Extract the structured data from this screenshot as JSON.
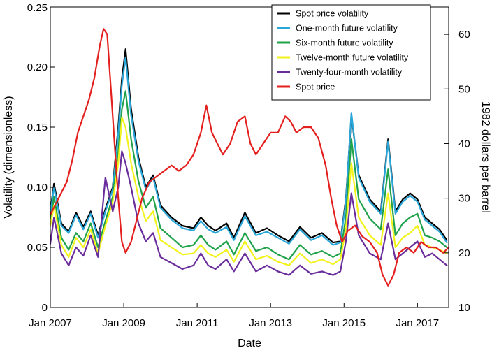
{
  "chart_data": {
    "type": "line",
    "xlabel": "Date",
    "ylabel_left": "Volatility (dimensionless)",
    "ylabel_right": "1982 dollars per barrel",
    "x_ticks": [
      {
        "label": "Jan 2007",
        "t": 2007.0
      },
      {
        "label": "Jan 2009",
        "t": 2009.0
      },
      {
        "label": "Jan 2011",
        "t": 2011.0
      },
      {
        "label": "Jan 2013",
        "t": 2013.0
      },
      {
        "label": "Jan 2015",
        "t": 2015.0
      },
      {
        "label": "Jan 2017",
        "t": 2017.0
      }
    ],
    "y_left_ticks": [
      {
        "label": "0",
        "v": 0
      },
      {
        "label": "0.05",
        "v": 0.05
      },
      {
        "label": "0.10",
        "v": 0.1
      },
      {
        "label": "0.15",
        "v": 0.15
      },
      {
        "label": "0.20",
        "v": 0.2
      },
      {
        "label": "0.25",
        "v": 0.25
      }
    ],
    "y_right_ticks": [
      {
        "label": "10",
        "v": 10
      },
      {
        "label": "20",
        "v": 20
      },
      {
        "label": "30",
        "v": 30
      },
      {
        "label": "40",
        "v": 40
      },
      {
        "label": "50",
        "v": 50
      },
      {
        "label": "60",
        "v": 60
      }
    ],
    "xlim": [
      2007.0,
      2017.85
    ],
    "ylim_left": [
      0,
      0.25
    ],
    "ylim_right": [
      10,
      65
    ],
    "legend_position": "top-right",
    "series": [
      {
        "name": "Spot price volatility",
        "color": "#000000",
        "axis": "left",
        "x": [
          2007.0,
          2007.1,
          2007.3,
          2007.5,
          2007.7,
          2007.9,
          2008.1,
          2008.3,
          2008.5,
          2008.7,
          2008.85,
          2008.95,
          2009.05,
          2009.2,
          2009.4,
          2009.6,
          2009.8,
          2010.0,
          2010.3,
          2010.6,
          2010.9,
          2011.1,
          2011.3,
          2011.5,
          2011.8,
          2012.0,
          2012.3,
          2012.6,
          2012.9,
          2013.2,
          2013.5,
          2013.8,
          2014.1,
          2014.4,
          2014.7,
          2014.9,
          2015.05,
          2015.2,
          2015.4,
          2015.7,
          2016.0,
          2016.2,
          2016.4,
          2016.6,
          2016.8,
          2017.0,
          2017.2,
          2017.4,
          2017.6,
          2017.8
        ],
        "values": [
          0.08,
          0.103,
          0.07,
          0.063,
          0.079,
          0.067,
          0.08,
          0.06,
          0.082,
          0.1,
          0.15,
          0.19,
          0.215,
          0.165,
          0.125,
          0.1,
          0.11,
          0.085,
          0.075,
          0.068,
          0.066,
          0.075,
          0.068,
          0.064,
          0.07,
          0.058,
          0.079,
          0.062,
          0.066,
          0.06,
          0.055,
          0.067,
          0.058,
          0.062,
          0.054,
          0.055,
          0.09,
          0.16,
          0.11,
          0.09,
          0.08,
          0.14,
          0.08,
          0.09,
          0.095,
          0.09,
          0.075,
          0.07,
          0.065,
          0.056
        ]
      },
      {
        "name": "One-month future volatility",
        "color": "#2aa6d8",
        "axis": "left",
        "x": [
          2007.0,
          2007.1,
          2007.3,
          2007.5,
          2007.7,
          2007.9,
          2008.1,
          2008.3,
          2008.5,
          2008.7,
          2008.85,
          2008.95,
          2009.05,
          2009.2,
          2009.4,
          2009.6,
          2009.8,
          2010.0,
          2010.3,
          2010.6,
          2010.9,
          2011.1,
          2011.3,
          2011.5,
          2011.8,
          2012.0,
          2012.3,
          2012.6,
          2012.9,
          2013.2,
          2013.5,
          2013.8,
          2014.1,
          2014.4,
          2014.7,
          2014.9,
          2015.05,
          2015.2,
          2015.4,
          2015.7,
          2016.0,
          2016.2,
          2016.4,
          2016.6,
          2016.8,
          2017.0,
          2017.2,
          2017.4,
          2017.6,
          2017.8
        ],
        "values": [
          0.078,
          0.1,
          0.068,
          0.062,
          0.077,
          0.065,
          0.078,
          0.058,
          0.08,
          0.098,
          0.145,
          0.185,
          0.208,
          0.16,
          0.122,
          0.098,
          0.108,
          0.083,
          0.073,
          0.066,
          0.064,
          0.072,
          0.065,
          0.062,
          0.067,
          0.056,
          0.076,
          0.06,
          0.063,
          0.058,
          0.053,
          0.065,
          0.056,
          0.06,
          0.052,
          0.054,
          0.088,
          0.162,
          0.108,
          0.088,
          0.078,
          0.138,
          0.078,
          0.088,
          0.093,
          0.088,
          0.073,
          0.068,
          0.063,
          0.054
        ]
      },
      {
        "name": "Six-month future volatility",
        "color": "#1fa24a",
        "axis": "left",
        "x": [
          2007.0,
          2007.1,
          2007.3,
          2007.5,
          2007.7,
          2007.9,
          2008.1,
          2008.3,
          2008.5,
          2008.7,
          2008.85,
          2008.95,
          2009.05,
          2009.2,
          2009.4,
          2009.6,
          2009.8,
          2010.0,
          2010.3,
          2010.6,
          2010.9,
          2011.1,
          2011.3,
          2011.5,
          2011.8,
          2012.0,
          2012.3,
          2012.6,
          2012.9,
          2013.2,
          2013.5,
          2013.8,
          2014.1,
          2014.4,
          2014.7,
          2014.9,
          2015.05,
          2015.2,
          2015.4,
          2015.7,
          2016.0,
          2016.2,
          2016.4,
          2016.6,
          2016.8,
          2017.0,
          2017.2,
          2017.4,
          2017.6,
          2017.8
        ],
        "values": [
          0.07,
          0.092,
          0.058,
          0.048,
          0.062,
          0.055,
          0.07,
          0.05,
          0.072,
          0.092,
          0.13,
          0.165,
          0.18,
          0.14,
          0.105,
          0.083,
          0.092,
          0.066,
          0.058,
          0.05,
          0.052,
          0.06,
          0.052,
          0.048,
          0.055,
          0.044,
          0.062,
          0.047,
          0.05,
          0.044,
          0.04,
          0.052,
          0.044,
          0.047,
          0.042,
          0.045,
          0.075,
          0.14,
          0.09,
          0.074,
          0.065,
          0.115,
          0.06,
          0.07,
          0.075,
          0.078,
          0.06,
          0.058,
          0.055,
          0.05
        ]
      },
      {
        "name": "Twelve-month future volatility",
        "color": "#f2f21c",
        "axis": "left",
        "x": [
          2007.0,
          2007.1,
          2007.3,
          2007.5,
          2007.7,
          2007.9,
          2008.1,
          2008.3,
          2008.5,
          2008.7,
          2008.85,
          2008.95,
          2009.05,
          2009.2,
          2009.4,
          2009.6,
          2009.8,
          2010.0,
          2010.3,
          2010.6,
          2010.9,
          2011.1,
          2011.3,
          2011.5,
          2011.8,
          2012.0,
          2012.3,
          2012.6,
          2012.9,
          2013.2,
          2013.5,
          2013.8,
          2014.1,
          2014.4,
          2014.7,
          2014.9,
          2015.05,
          2015.2,
          2015.4,
          2015.7,
          2016.0,
          2016.2,
          2016.4,
          2016.6,
          2016.8,
          2017.0,
          2017.2,
          2017.4,
          2017.6,
          2017.8
        ],
        "values": [
          0.068,
          0.085,
          0.052,
          0.042,
          0.058,
          0.05,
          0.065,
          0.045,
          0.068,
          0.088,
          0.12,
          0.158,
          0.15,
          0.12,
          0.092,
          0.072,
          0.08,
          0.056,
          0.05,
          0.044,
          0.045,
          0.052,
          0.045,
          0.042,
          0.048,
          0.038,
          0.055,
          0.04,
          0.043,
          0.038,
          0.035,
          0.045,
          0.037,
          0.04,
          0.036,
          0.04,
          0.065,
          0.12,
          0.075,
          0.06,
          0.052,
          0.095,
          0.05,
          0.058,
          0.062,
          0.068,
          0.052,
          0.05,
          0.048,
          0.045
        ]
      },
      {
        "name": "Twenty-four-month volatility",
        "color": "#6a2d9c",
        "axis": "left",
        "x": [
          2007.0,
          2007.1,
          2007.3,
          2007.5,
          2007.7,
          2007.9,
          2008.1,
          2008.3,
          2008.5,
          2008.7,
          2008.85,
          2008.95,
          2009.05,
          2009.2,
          2009.4,
          2009.6,
          2009.8,
          2010.0,
          2010.3,
          2010.6,
          2010.9,
          2011.1,
          2011.3,
          2011.5,
          2011.8,
          2012.0,
          2012.3,
          2012.6,
          2012.9,
          2013.2,
          2013.5,
          2013.8,
          2014.1,
          2014.4,
          2014.7,
          2014.9,
          2015.05,
          2015.2,
          2015.4,
          2015.7,
          2016.0,
          2016.2,
          2016.4,
          2016.6,
          2016.8,
          2017.0,
          2017.2,
          2017.4,
          2017.6,
          2017.8
        ],
        "values": [
          0.053,
          0.075,
          0.045,
          0.035,
          0.05,
          0.043,
          0.06,
          0.042,
          0.108,
          0.08,
          0.1,
          0.13,
          0.12,
          0.1,
          0.07,
          0.055,
          0.062,
          0.042,
          0.037,
          0.032,
          0.035,
          0.045,
          0.035,
          0.032,
          0.04,
          0.03,
          0.045,
          0.03,
          0.035,
          0.03,
          0.027,
          0.035,
          0.028,
          0.03,
          0.027,
          0.03,
          0.055,
          0.095,
          0.06,
          0.045,
          0.04,
          0.07,
          0.04,
          0.045,
          0.05,
          0.055,
          0.042,
          0.045,
          0.04,
          0.035
        ]
      },
      {
        "name": "Spot price",
        "color": "#e4201e",
        "axis": "right",
        "x": [
          2007.0,
          2007.15,
          2007.3,
          2007.45,
          2007.6,
          2007.75,
          2007.9,
          2008.05,
          2008.2,
          2008.35,
          2008.45,
          2008.55,
          2008.65,
          2008.75,
          2008.85,
          2008.95,
          2009.05,
          2009.2,
          2009.35,
          2009.5,
          2009.7,
          2009.9,
          2010.1,
          2010.3,
          2010.5,
          2010.7,
          2010.9,
          2011.1,
          2011.25,
          2011.4,
          2011.55,
          2011.7,
          2011.9,
          2012.1,
          2012.3,
          2012.45,
          2012.6,
          2012.8,
          2013.0,
          2013.2,
          2013.4,
          2013.55,
          2013.7,
          2013.9,
          2014.1,
          2014.3,
          2014.5,
          2014.65,
          2014.8,
          2014.95,
          2015.1,
          2015.3,
          2015.5,
          2015.7,
          2015.9,
          2016.05,
          2016.2,
          2016.35,
          2016.5,
          2016.7,
          2016.9,
          2017.1,
          2017.3,
          2017.5,
          2017.7,
          2017.85
        ],
        "values": [
          27,
          29,
          31,
          33,
          37,
          42,
          45,
          48,
          52,
          58,
          61,
          60,
          50,
          40,
          30,
          22,
          20,
          22,
          26,
          30,
          33,
          34,
          35,
          36,
          35,
          36,
          38,
          42,
          47,
          42,
          40,
          38,
          40,
          44,
          45,
          40,
          38,
          40,
          42,
          42,
          45,
          44,
          42,
          43,
          43,
          41,
          36,
          30,
          25,
          22,
          24,
          25,
          23,
          22,
          20,
          16,
          14,
          16,
          20,
          21,
          20,
          22,
          21,
          21,
          20,
          21
        ]
      }
    ]
  }
}
